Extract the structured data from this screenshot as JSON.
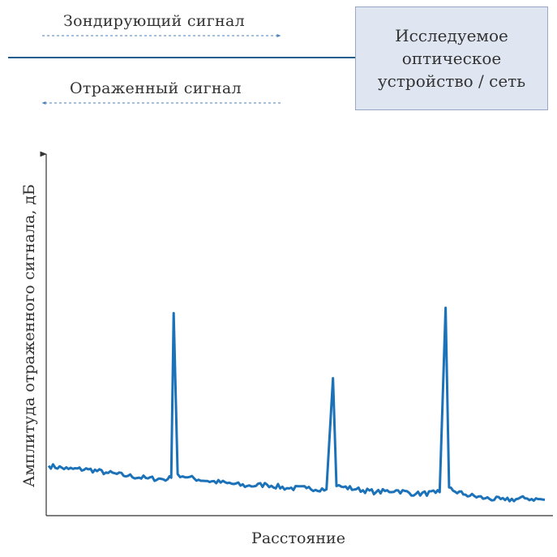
{
  "diagram": {
    "probe_signal": "Зондирующий сигнал",
    "reflected_signal": "Отраженный сигнал",
    "device": "Исследуемое\nоптическое\nустройство / сеть",
    "colors": {
      "fiber": "#1f5d8c",
      "trace": "#1b72b8",
      "box_fill": "#dfe6f2",
      "box_border": "#98a7c6"
    }
  },
  "chart_data": {
    "type": "line",
    "title": "",
    "xlabel": "Расстояние",
    "ylabel": "Амплитуда отраженного сигнала, дБ",
    "grid": false,
    "legend": "none",
    "xlim": [
      0,
      100
    ],
    "ylim": [
      0,
      100
    ],
    "series": [
      {
        "x": [
          0,
          4,
          8,
          12,
          16,
          20,
          24,
          24.7,
          25.2,
          26.0,
          28,
          32,
          36,
          40,
          44,
          48,
          52,
          56.0,
          57.3,
          58.0,
          59.0,
          62,
          66,
          70,
          74,
          78,
          78.8,
          80.0,
          80.7,
          81.5,
          84,
          88,
          92,
          96,
          100
        ],
        "values": [
          13.8,
          12.9,
          12.8,
          11.8,
          11.0,
          10.3,
          10.1,
          10.5,
          56,
          11.5,
          10.6,
          9.6,
          9.0,
          8.2,
          8.6,
          7.6,
          7.6,
          7.3,
          38,
          8.2,
          8.0,
          7.3,
          6.5,
          7.0,
          6.0,
          6.3,
          6.5,
          57.5,
          7.8,
          6.9,
          5.8,
          4.8,
          4.3,
          4.8,
          4.4
        ]
      }
    ]
  }
}
